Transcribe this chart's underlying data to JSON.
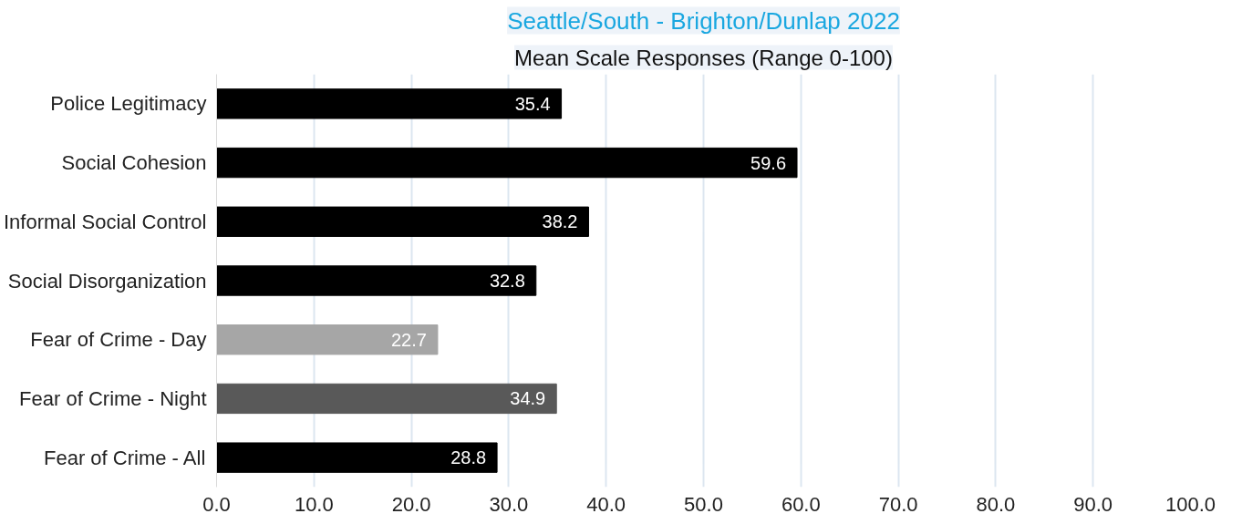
{
  "chart_data": {
    "type": "bar",
    "orientation": "horizontal",
    "title": "Seattle/South - Brighton/Dunlap 2022",
    "subtitle": "Mean Scale Responses (Range 0-100)",
    "categories": [
      "Police Legitimacy",
      "Social Cohesion",
      "Informal Social Control",
      "Social Disorganization",
      "Fear of Crime - Day",
      "Fear of Crime - Night",
      "Fear of Crime - All"
    ],
    "values": [
      35.4,
      59.6,
      38.2,
      32.8,
      22.7,
      34.9,
      28.8
    ],
    "colors": [
      "#000000",
      "#000000",
      "#000000",
      "#000000",
      "#a6a6a6",
      "#595959",
      "#000000"
    ],
    "data_labels": true,
    "grid": "x",
    "xlim": [
      0,
      100
    ],
    "xticks": [
      {
        "value": 0,
        "label": "0.0"
      },
      {
        "value": 10,
        "label": "10.0"
      },
      {
        "value": 20,
        "label": "20.0"
      },
      {
        "value": 30,
        "label": "30.0"
      },
      {
        "value": 40,
        "label": "40.0"
      },
      {
        "value": 50,
        "label": "50.0"
      },
      {
        "value": 60,
        "label": "60.0"
      },
      {
        "value": 70,
        "label": "70.0"
      },
      {
        "value": 80,
        "label": "80.0"
      },
      {
        "value": 90,
        "label": "90.0"
      },
      {
        "value": 100,
        "label": "100.0"
      }
    ]
  }
}
